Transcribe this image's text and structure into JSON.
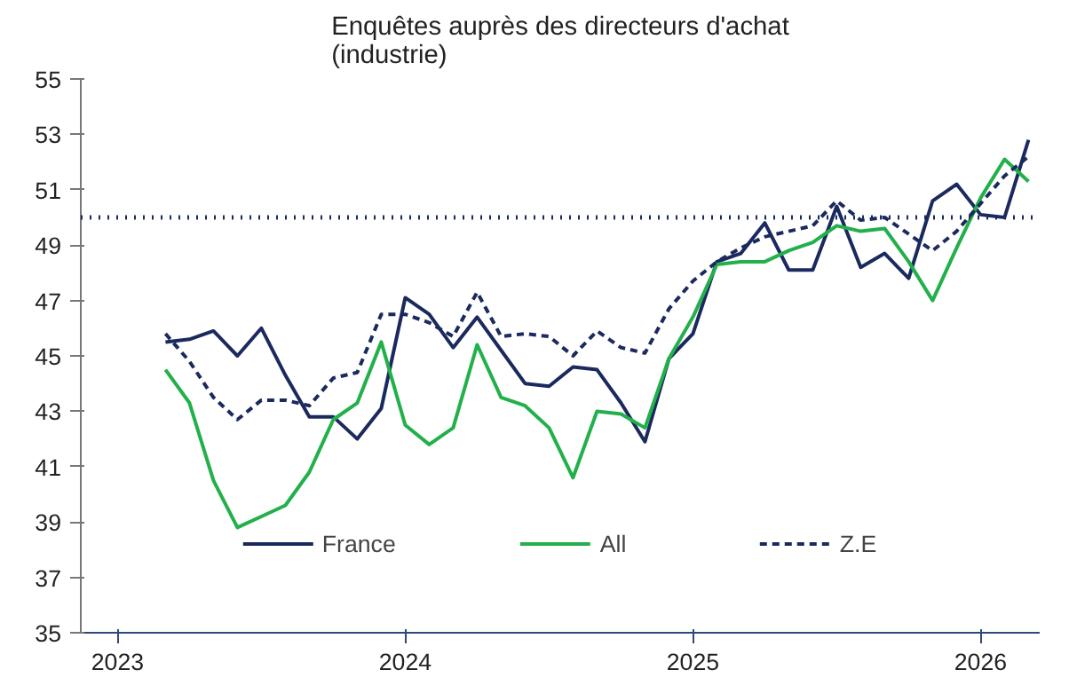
{
  "chart_data": {
    "type": "line",
    "title": "Enquêtes auprès des directeurs d'achat\n(industrie)",
    "x": [
      "2023-03",
      "2023-04",
      "2023-05",
      "2023-06",
      "2023-07",
      "2023-08",
      "2023-09",
      "2023-10",
      "2023-11",
      "2023-12",
      "2024-01",
      "2024-02",
      "2024-03",
      "2024-04",
      "2024-05",
      "2024-06",
      "2024-07",
      "2024-08",
      "2024-09",
      "2024-10",
      "2024-11",
      "2024-12",
      "2025-01",
      "2025-02",
      "2025-03",
      "2025-04",
      "2025-05",
      "2025-06",
      "2025-07",
      "2025-08",
      "2025-09",
      "2025-10",
      "2025-11",
      "2025-12",
      "2026-01",
      "2026-02",
      "2026-03"
    ],
    "series": [
      {
        "name": "France",
        "color": "#1b2a5e",
        "line_style": "solid",
        "values": [
          45.5,
          45.6,
          45.9,
          45.0,
          46.0,
          44.3,
          42.8,
          42.8,
          42.0,
          43.1,
          47.1,
          46.5,
          45.3,
          46.4,
          45.2,
          44.0,
          43.9,
          44.6,
          44.5,
          43.3,
          41.9,
          44.9,
          45.8,
          48.4,
          48.7,
          49.8,
          48.1,
          48.1,
          50.4,
          48.2,
          48.7,
          47.8,
          50.6,
          51.2,
          50.1,
          50.0,
          52.8
        ]
      },
      {
        "name": "All",
        "color": "#22b04b",
        "line_style": "solid",
        "values": [
          44.5,
          43.3,
          40.5,
          38.8,
          39.2,
          39.6,
          40.8,
          42.7,
          43.3,
          45.5,
          42.5,
          41.8,
          42.4,
          45.4,
          43.5,
          43.2,
          42.4,
          40.6,
          43.0,
          42.9,
          42.4,
          44.9,
          46.4,
          48.3,
          48.4,
          48.4,
          48.8,
          49.1,
          49.7,
          49.5,
          49.6,
          48.4,
          47.0,
          48.9,
          50.7,
          52.1,
          51.3
        ]
      },
      {
        "name": "Z.E",
        "color": "#1b2a5e",
        "line_style": "dashed",
        "values": [
          45.8,
          44.8,
          43.5,
          42.7,
          43.4,
          43.4,
          43.2,
          44.2,
          44.4,
          46.5,
          46.5,
          46.2,
          45.7,
          47.3,
          45.7,
          45.8,
          45.7,
          45.0,
          45.9,
          45.3,
          45.1,
          46.7,
          47.7,
          48.4,
          48.9,
          49.3,
          49.5,
          49.7,
          50.6,
          49.9,
          50.0,
          49.4,
          48.8,
          49.5,
          50.5,
          51.5,
          52.2
        ]
      }
    ],
    "xlim": [
      "2022-11-15",
      "2026-03-15"
    ],
    "xticks": [
      {
        "value": "2023-01",
        "label": "2023"
      },
      {
        "value": "2024-01",
        "label": "2024"
      },
      {
        "value": "2025-01",
        "label": "2025"
      },
      {
        "value": "2026-01",
        "label": "2026"
      }
    ],
    "ylim": [
      35,
      55
    ],
    "yticks": [
      35,
      37,
      39,
      41,
      43,
      45,
      47,
      49,
      51,
      53,
      55
    ],
    "ref_lines": [
      {
        "axis": "y",
        "value": 50,
        "color": "#1b2a5e",
        "line_style": "dotted"
      }
    ],
    "grid": false,
    "legend": "bottom",
    "marker": "none"
  }
}
